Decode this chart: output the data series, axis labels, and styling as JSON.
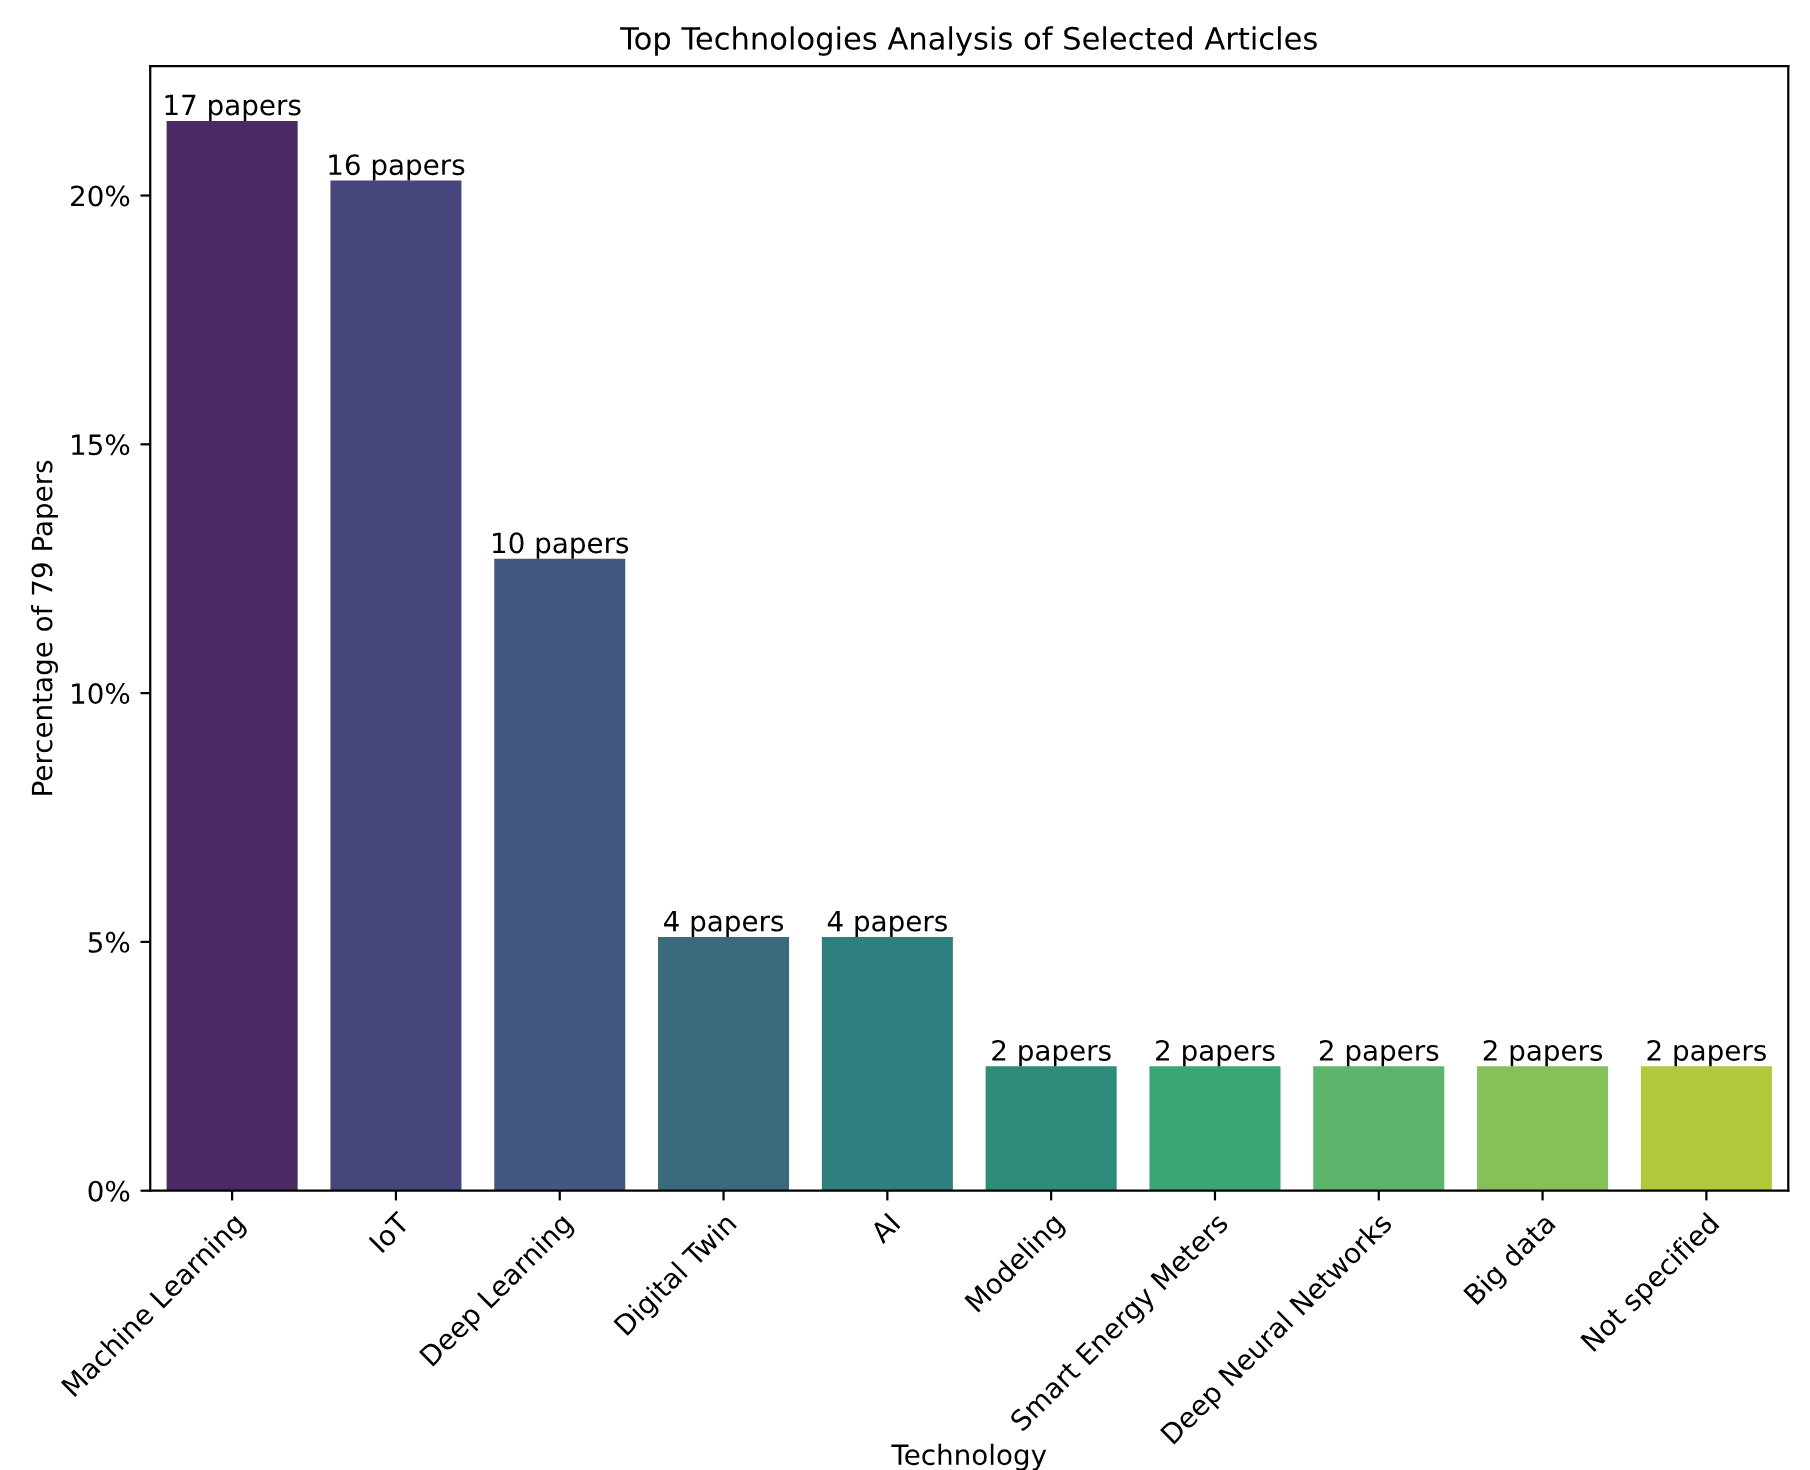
{
  "chart_data": {
    "type": "bar",
    "title": "Top Technologies Analysis of Selected Articles",
    "xlabel": "Technology",
    "ylabel": "Percentage of 79 Papers",
    "categories": [
      "Machine Learning",
      "IoT",
      "Deep Learning",
      "Digital Twin",
      "AI",
      "Modeling",
      "Smart Energy Meters",
      "Deep Neural Networks",
      "Big data",
      "Not specified"
    ],
    "values": [
      21.5,
      20.3,
      12.7,
      5.1,
      5.1,
      2.5,
      2.5,
      2.5,
      2.5,
      2.5
    ],
    "colors": [
      "#4b2a64",
      "#47467c",
      "#41597f",
      "#3a6b7d",
      "#307f80",
      "#2e8c7a",
      "#3aa675",
      "#5db46b",
      "#86c058",
      "#b1c83a"
    ],
    "annotations": [
      {
        "text": "17 papers",
        "x": "Machine Learning",
        "y": 21.5
      },
      {
        "text": "16 papers",
        "x": "IoT",
        "y": 20.3
      },
      {
        "text": "10 papers",
        "x": "Deep Learning",
        "y": 12.7
      },
      {
        "text": "4 papers",
        "x": "Digital Twin",
        "y": 5.1
      },
      {
        "text": "4 papers",
        "x": "AI",
        "y": 5.1
      },
      {
        "text": "2 papers",
        "x": "Modeling",
        "y": 2.5
      },
      {
        "text": "2 papers",
        "x": "Smart Energy Meters",
        "y": 2.5
      },
      {
        "text": "2 papers",
        "x": "Deep Neural Networks",
        "y": 2.5
      },
      {
        "text": "2 papers",
        "x": "Big data",
        "y": 2.5
      },
      {
        "text": "2 papers",
        "x": "Not specified",
        "y": 2.5
      }
    ],
    "ylim": [
      0,
      22.6
    ],
    "yticks": [
      {
        "value": 0,
        "label": "0%"
      },
      {
        "value": 5,
        "label": "5%"
      },
      {
        "value": 10,
        "label": "10%"
      },
      {
        "value": 15,
        "label": "15%"
      },
      {
        "value": 20,
        "label": "20%"
      }
    ],
    "grid": false,
    "legend": false
  }
}
